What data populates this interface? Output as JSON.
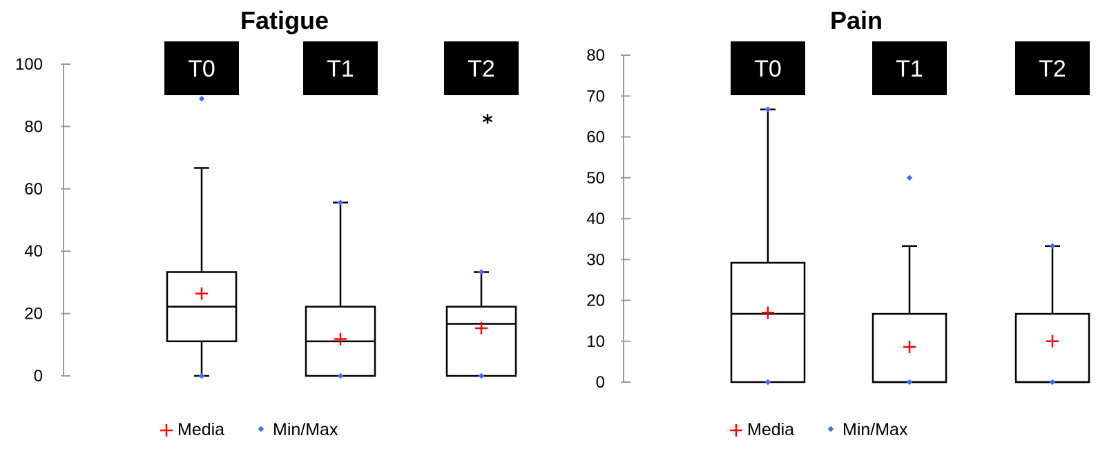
{
  "colors": {
    "mean": "#ff0000",
    "minmax": "#3b6cf5",
    "axis": "#9a9a9a",
    "box": "#000000",
    "label_bg": "#000000"
  },
  "legend": {
    "mean_label": "Media",
    "minmax_label": "Min/Max"
  },
  "chart_data": [
    {
      "type": "box",
      "title": "Fatigue",
      "ylim": [
        0,
        100
      ],
      "yticks": [
        "0",
        "20",
        "40",
        "60",
        "80",
        "100"
      ],
      "groups": [
        {
          "label": "T0",
          "min": 0,
          "q1": 11.1,
          "median": 22.2,
          "q3": 33.3,
          "max": 88.9,
          "whisker_low": 0,
          "whisker_high": 66.7,
          "mean": 26.4,
          "annotation": ""
        },
        {
          "label": "T1",
          "min": 0,
          "q1": 0,
          "median": 11.1,
          "q3": 22.2,
          "max": 55.6,
          "whisker_low": 0,
          "whisker_high": 55.6,
          "mean": 11.8,
          "annotation": ""
        },
        {
          "label": "T2",
          "min": 0,
          "q1": 0,
          "median": 16.7,
          "q3": 22.2,
          "max": 33.3,
          "whisker_low": 0,
          "whisker_high": 33.3,
          "mean": 15.3,
          "annotation": "*"
        }
      ]
    },
    {
      "type": "box",
      "title": "Pain",
      "ylim": [
        0,
        80
      ],
      "yticks": [
        "0",
        "10",
        "20",
        "30",
        "40",
        "50",
        "60",
        "70",
        "80"
      ],
      "groups": [
        {
          "label": "T0",
          "min": 0,
          "q1": 0,
          "median": 16.7,
          "q3": 29.2,
          "max": 66.7,
          "whisker_low": 0,
          "whisker_high": 66.7,
          "mean": 17.0,
          "annotation": ""
        },
        {
          "label": "T1",
          "min": 0,
          "q1": 0,
          "median": 0,
          "q3": 16.7,
          "max": 50,
          "whisker_low": 0,
          "whisker_high": 33.3,
          "mean": 8.6,
          "annotation": ""
        },
        {
          "label": "T2",
          "min": 0,
          "q1": 0,
          "median": 0,
          "q3": 16.7,
          "max": 33.3,
          "whisker_low": 0,
          "whisker_high": 33.3,
          "mean": 10.0,
          "annotation": ""
        }
      ]
    }
  ]
}
